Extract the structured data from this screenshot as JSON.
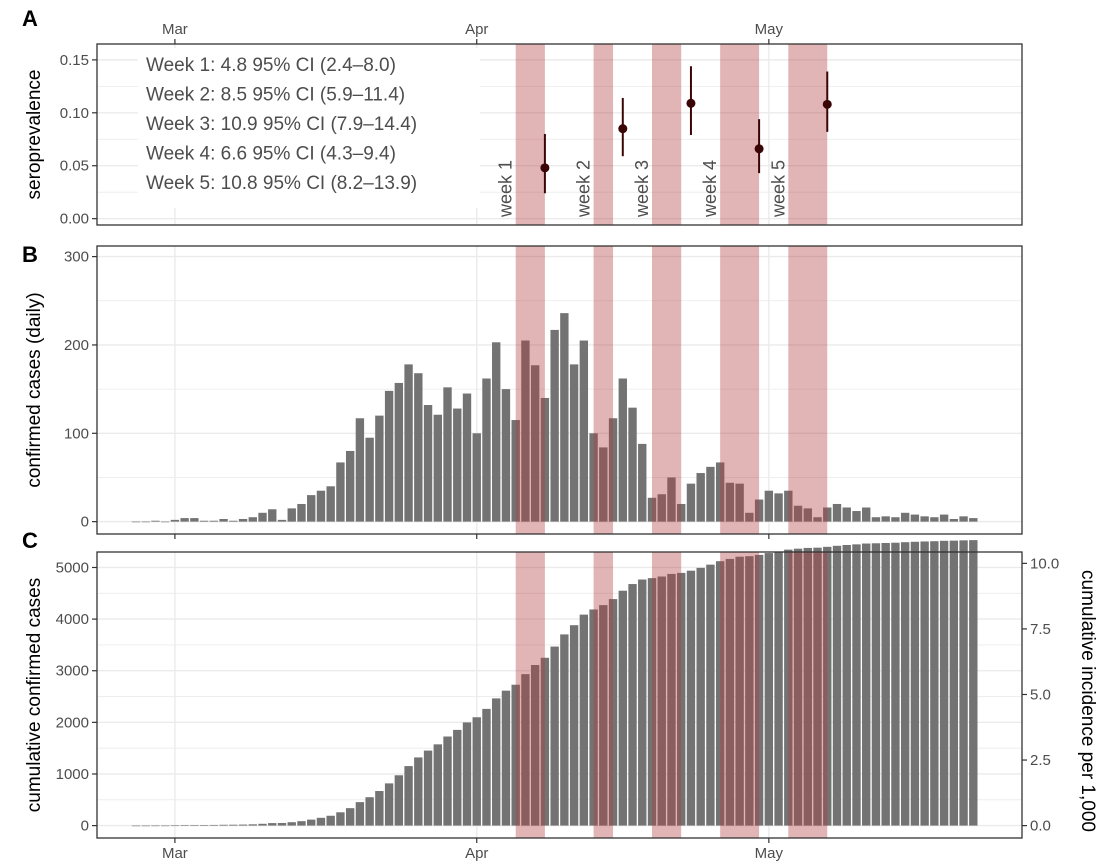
{
  "chart_data": [
    {
      "panel": "A",
      "type": "scatter",
      "ylabel": "seroprevalence",
      "ylim": [
        0,
        0.16
      ],
      "yticks": [
        "0.00",
        "0.05",
        "0.10",
        "0.15"
      ],
      "ytick_values": [
        0,
        0.05,
        0.1,
        0.15
      ],
      "xticks": [
        "Mar",
        "Apr",
        "May"
      ],
      "grid": true,
      "annotations": [
        "Week 1: 4.8 95% CI (2.4–8.0)",
        "Week 2: 8.5 95% CI (5.9–11.4)",
        "Week 3: 10.9 95% CI (7.9–14.4)",
        "Week 4: 6.6 95% CI (4.3–9.4)",
        "Week 5: 10.8 95% CI (8.2–13.9)"
      ],
      "week_labels": [
        "week 1",
        "week 2",
        "week 3",
        "week 4",
        "week 5"
      ],
      "points": [
        {
          "date": "2020-04-08",
          "y": 0.048,
          "lo": 0.024,
          "hi": 0.08
        },
        {
          "date": "2020-04-16",
          "y": 0.085,
          "lo": 0.059,
          "hi": 0.114
        },
        {
          "date": "2020-04-23",
          "y": 0.109,
          "lo": 0.079,
          "hi": 0.144
        },
        {
          "date": "2020-04-30",
          "y": 0.066,
          "lo": 0.043,
          "hi": 0.094
        },
        {
          "date": "2020-05-07",
          "y": 0.108,
          "lo": 0.082,
          "hi": 0.139
        }
      ]
    },
    {
      "panel": "B",
      "type": "bar",
      "ylabel": "confirmed cases (daily)",
      "ylim": [
        0,
        310
      ],
      "yticks": [
        "0",
        "100",
        "200",
        "300"
      ],
      "ytick_values": [
        0,
        100,
        200,
        300
      ],
      "first_date": "2020-02-26",
      "values": [
        0,
        0,
        1,
        0,
        2,
        4,
        4,
        1,
        1,
        3,
        1,
        3,
        5,
        10,
        14,
        2,
        15,
        20,
        30,
        35,
        40,
        67,
        80,
        117,
        95,
        120,
        148,
        157,
        178,
        168,
        132,
        121,
        152,
        128,
        145,
        100,
        162,
        203,
        150,
        115,
        205,
        177,
        140,
        217,
        236,
        178,
        205,
        100,
        84,
        117,
        162,
        129,
        88,
        27,
        31,
        50,
        20,
        43,
        55,
        62,
        67,
        44,
        43,
        10,
        25,
        35,
        32,
        35,
        18,
        15,
        5,
        16,
        20,
        16,
        12,
        16,
        5,
        6,
        5,
        10,
        8,
        6,
        5,
        8,
        3,
        6,
        4
      ],
      "grid": true
    },
    {
      "panel": "C",
      "type": "bar",
      "ylabel": "cumulative confirmed cases",
      "ylabel_right": "cumulative incidence per 1,000",
      "ylim": [
        0,
        5300
      ],
      "yticks": [
        "0",
        "1000",
        "2000",
        "3000",
        "4000",
        "5000"
      ],
      "ytick_values": [
        0,
        1000,
        2000,
        3000,
        4000,
        5000
      ],
      "yticks_right": [
        "0.0",
        "2.5",
        "5.0",
        "7.5",
        "10.0"
      ],
      "ytick_right_values": [
        0,
        2.5,
        5.0,
        7.5,
        10.0
      ],
      "right_axis_max_at_left": 5080,
      "xticks": [
        "Mar",
        "Apr",
        "May"
      ],
      "grid": true,
      "note": "cumulative sum of panel B daily values"
    }
  ],
  "axis": {
    "start": "2020-02-22",
    "end": "2020-05-27",
    "month_ticks": [
      {
        "label": "Mar",
        "date": "2020-03-01"
      },
      {
        "label": "Apr",
        "date": "2020-04-01"
      },
      {
        "label": "May",
        "date": "2020-05-01"
      }
    ]
  },
  "survey_weeks": [
    {
      "start": "2020-04-05",
      "end": "2020-04-08"
    },
    {
      "start": "2020-04-13",
      "end": "2020-04-15"
    },
    {
      "start": "2020-04-19",
      "end": "2020-04-22"
    },
    {
      "start": "2020-04-26",
      "end": "2020-04-30"
    },
    {
      "start": "2020-05-03",
      "end": "2020-05-07"
    }
  ],
  "panel_letters": [
    "A",
    "B",
    "C"
  ],
  "colors": {
    "band": "#b03a3e",
    "bar": "#737373",
    "point": "#3a0505",
    "grid": "#ebebeb"
  }
}
